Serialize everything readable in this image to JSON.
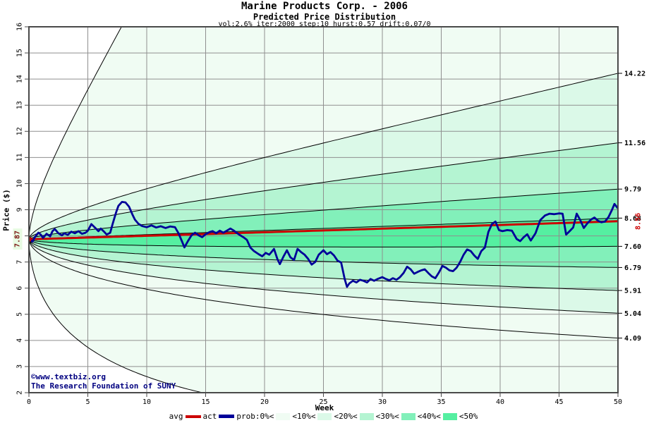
{
  "chart_data": {
    "type": "area",
    "title": "Marine Products Corp. - 2006",
    "subtitle": "Predicted Price Distribution",
    "params": "vol:2.6% iter:2000 step:10 hurst:0.57 drift:0.07/0",
    "xlabel": "Week",
    "ylabel": "Price ($)",
    "xlim": [
      0,
      50
    ],
    "ylim": [
      2,
      16
    ],
    "x_ticks": [
      0,
      5,
      10,
      15,
      20,
      25,
      30,
      35,
      40,
      45,
      50
    ],
    "y_ticks": [
      2,
      3,
      4,
      5,
      6,
      7,
      8,
      9,
      10,
      11,
      12,
      13,
      14,
      15,
      16
    ],
    "grid": true,
    "hurst": 0.57,
    "band_colors": [
      "#F0FCF3",
      "#DBF9E8",
      "#B4F4D2",
      "#82F0BA",
      "#55EFA1"
    ],
    "band_color_indices": [
      0,
      1,
      2,
      3,
      4,
      3,
      2,
      1,
      0,
      0
    ],
    "boundaries": [
      {
        "name": "envelope-top",
        "k": 2.0,
        "label": ""
      },
      {
        "name": "upper-4",
        "end_value": 14.22,
        "label": "14.22"
      },
      {
        "name": "upper-3",
        "end_value": 11.56,
        "label": "11.56"
      },
      {
        "name": "upper-2",
        "end_value": 9.79,
        "label": "9.79"
      },
      {
        "name": "upper-1",
        "end_value": 8.68,
        "label": "8.68"
      },
      {
        "name": "lower-1",
        "end_value": 7.6,
        "label": "7.60"
      },
      {
        "name": "lower-2",
        "end_value": 6.79,
        "label": "6.79"
      },
      {
        "name": "lower-3",
        "end_value": 5.91,
        "label": "5.91"
      },
      {
        "name": "lower-4",
        "end_value": 5.04,
        "label": "5.04"
      },
      {
        "name": "lower-5",
        "end_value": 4.09,
        "label": "4.09"
      },
      {
        "name": "envelope-bottom",
        "k": -2.8,
        "label": ""
      }
    ],
    "avg": {
      "label": "avg",
      "start_value": 7.87,
      "start_label": "7.87",
      "end_value": 8.56,
      "end_label": "8.56",
      "color": "#cc0000"
    },
    "actual": {
      "label": "act",
      "color": "#000099",
      "points": [
        [
          0,
          7.87
        ],
        [
          0.3,
          7.78
        ],
        [
          0.5,
          7.95
        ],
        [
          0.8,
          8.12
        ],
        [
          1,
          8.05
        ],
        [
          1.2,
          7.92
        ],
        [
          1.5,
          8.08
        ],
        [
          1.8,
          7.98
        ],
        [
          2,
          8.18
        ],
        [
          2.2,
          8.26
        ],
        [
          2.5,
          8.1
        ],
        [
          2.8,
          8.02
        ],
        [
          3,
          8.1
        ],
        [
          3.3,
          8.04
        ],
        [
          3.6,
          8.16
        ],
        [
          3.9,
          8.1
        ],
        [
          4.2,
          8.18
        ],
        [
          4.5,
          8.08
        ],
        [
          4.8,
          8.12
        ],
        [
          5,
          8.2
        ],
        [
          5.3,
          8.45
        ],
        [
          5.6,
          8.32
        ],
        [
          5.9,
          8.18
        ],
        [
          6.1,
          8.28
        ],
        [
          6.4,
          8.15
        ],
        [
          6.6,
          8.05
        ],
        [
          6.9,
          8.12
        ],
        [
          7.1,
          8.45
        ],
        [
          7.4,
          8.9
        ],
        [
          7.6,
          9.15
        ],
        [
          7.9,
          9.3
        ],
        [
          8.2,
          9.28
        ],
        [
          8.5,
          9.12
        ],
        [
          8.8,
          8.8
        ],
        [
          9,
          8.62
        ],
        [
          9.3,
          8.46
        ],
        [
          9.6,
          8.38
        ],
        [
          10,
          8.33
        ],
        [
          10.4,
          8.4
        ],
        [
          10.8,
          8.32
        ],
        [
          11.2,
          8.37
        ],
        [
          11.6,
          8.3
        ],
        [
          12,
          8.36
        ],
        [
          12.4,
          8.33
        ],
        [
          12.7,
          8.1
        ],
        [
          13,
          7.78
        ],
        [
          13.2,
          7.56
        ],
        [
          13.5,
          7.8
        ],
        [
          13.8,
          8.02
        ],
        [
          14.1,
          8.12
        ],
        [
          14.4,
          8.02
        ],
        [
          14.7,
          7.95
        ],
        [
          15,
          8.06
        ],
        [
          15.3,
          8.14
        ],
        [
          15.6,
          8.18
        ],
        [
          15.9,
          8.1
        ],
        [
          16.2,
          8.2
        ],
        [
          16.5,
          8.12
        ],
        [
          16.8,
          8.2
        ],
        [
          17.1,
          8.28
        ],
        [
          17.4,
          8.2
        ],
        [
          17.8,
          8.06
        ],
        [
          18.2,
          7.95
        ],
        [
          18.5,
          7.85
        ],
        [
          18.8,
          7.55
        ],
        [
          19.1,
          7.42
        ],
        [
          19.5,
          7.3
        ],
        [
          19.8,
          7.22
        ],
        [
          20.1,
          7.35
        ],
        [
          20.4,
          7.28
        ],
        [
          20.8,
          7.5
        ],
        [
          21.1,
          7.1
        ],
        [
          21.3,
          6.92
        ],
        [
          21.6,
          7.2
        ],
        [
          21.9,
          7.45
        ],
        [
          22.2,
          7.18
        ],
        [
          22.5,
          7.08
        ],
        [
          22.8,
          7.5
        ],
        [
          23.1,
          7.38
        ],
        [
          23.4,
          7.28
        ],
        [
          23.7,
          7.12
        ],
        [
          24,
          6.9
        ],
        [
          24.3,
          7
        ],
        [
          24.6,
          7.28
        ],
        [
          25,
          7.45
        ],
        [
          25.3,
          7.3
        ],
        [
          25.6,
          7.38
        ],
        [
          25.9,
          7.25
        ],
        [
          26.2,
          7.05
        ],
        [
          26.5,
          6.98
        ],
        [
          26.8,
          6.35
        ],
        [
          27,
          6.05
        ],
        [
          27.2,
          6.18
        ],
        [
          27.5,
          6.28
        ],
        [
          27.8,
          6.22
        ],
        [
          28.1,
          6.32
        ],
        [
          28.4,
          6.28
        ],
        [
          28.7,
          6.22
        ],
        [
          29,
          6.35
        ],
        [
          29.3,
          6.28
        ],
        [
          29.6,
          6.35
        ],
        [
          30,
          6.42
        ],
        [
          30.3,
          6.35
        ],
        [
          30.6,
          6.3
        ],
        [
          30.9,
          6.38
        ],
        [
          31.2,
          6.32
        ],
        [
          31.5,
          6.42
        ],
        [
          31.8,
          6.58
        ],
        [
          32.1,
          6.82
        ],
        [
          32.4,
          6.72
        ],
        [
          32.7,
          6.55
        ],
        [
          33,
          6.62
        ],
        [
          33.3,
          6.68
        ],
        [
          33.6,
          6.72
        ],
        [
          33.9,
          6.58
        ],
        [
          34.2,
          6.45
        ],
        [
          34.5,
          6.38
        ],
        [
          34.8,
          6.6
        ],
        [
          35.1,
          6.85
        ],
        [
          35.4,
          6.78
        ],
        [
          35.7,
          6.68
        ],
        [
          36,
          6.65
        ],
        [
          36.3,
          6.78
        ],
        [
          36.6,
          7
        ],
        [
          36.9,
          7.28
        ],
        [
          37.2,
          7.48
        ],
        [
          37.5,
          7.42
        ],
        [
          37.8,
          7.25
        ],
        [
          38.1,
          7.12
        ],
        [
          38.4,
          7.42
        ],
        [
          38.7,
          7.55
        ],
        [
          39,
          8.15
        ],
        [
          39.3,
          8.45
        ],
        [
          39.6,
          8.55
        ],
        [
          39.9,
          8.22
        ],
        [
          40.2,
          8.18
        ],
        [
          40.6,
          8.22
        ],
        [
          41,
          8.2
        ],
        [
          41.4,
          7.88
        ],
        [
          41.7,
          7.8
        ],
        [
          42,
          7.95
        ],
        [
          42.3,
          8.06
        ],
        [
          42.6,
          7.82
        ],
        [
          43,
          8.1
        ],
        [
          43.4,
          8.6
        ],
        [
          43.8,
          8.78
        ],
        [
          44.2,
          8.85
        ],
        [
          44.6,
          8.83
        ],
        [
          45,
          8.86
        ],
        [
          45.3,
          8.85
        ],
        [
          45.6,
          8.05
        ],
        [
          45.9,
          8.18
        ],
        [
          46.2,
          8.32
        ],
        [
          46.5,
          8.85
        ],
        [
          46.8,
          8.6
        ],
        [
          47.1,
          8.3
        ],
        [
          47.4,
          8.48
        ],
        [
          47.7,
          8.62
        ],
        [
          48,
          8.7
        ],
        [
          48.3,
          8.58
        ],
        [
          48.6,
          8.52
        ],
        [
          48.9,
          8.55
        ],
        [
          49.2,
          8.72
        ],
        [
          49.5,
          9
        ],
        [
          49.7,
          9.22
        ],
        [
          50,
          9.05
        ]
      ]
    }
  },
  "colors": {
    "avg_line": "#cc0000",
    "act_line": "#000099",
    "grid": "#8f8f8f",
    "frame": "#4a4a4a",
    "fan_line": "#000000",
    "copyright_text": "#000080",
    "start_label_text": "#7b1010",
    "start_label_bg": "#e7fbe2",
    "end_label_text": "#cc0000"
  },
  "copyright": {
    "line1": "©www.textbiz.org",
    "line2": "The Research Foundation of SUNY"
  },
  "legend": {
    "avg_label": "avg",
    "act_label": "act",
    "prob_label": "prob:0%<",
    "items": [
      {
        "label": "<10%<",
        "color_index": 0
      },
      {
        "label": "<20%<",
        "color_index": 1
      },
      {
        "label": "<30%<",
        "color_index": 2
      },
      {
        "label": "<40%<",
        "color_index": 3
      },
      {
        "label": "<50%",
        "color_index": 4
      }
    ]
  }
}
